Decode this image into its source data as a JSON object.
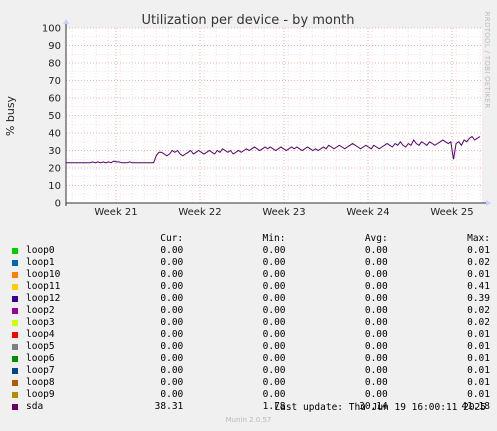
{
  "chart_data": {
    "type": "line",
    "title": "Utilization per device - by month",
    "ylabel": "% busy",
    "ylim": [
      0,
      100
    ],
    "yticks": [
      0,
      10,
      20,
      30,
      40,
      50,
      60,
      70,
      80,
      90,
      100
    ],
    "xtick_labels": [
      "Week 21",
      "Week 22",
      "Week 23",
      "Week 24",
      "Week 25"
    ],
    "grid": true,
    "series": [
      {
        "name": "sda",
        "color": "#550066",
        "values": [
          23,
          23,
          23,
          23,
          23,
          23,
          23,
          23,
          23,
          23,
          23.5,
          23,
          23.5,
          23,
          23.5,
          23,
          23.5,
          23,
          24,
          23.5,
          23.5,
          23,
          23,
          23,
          23.5,
          23,
          23,
          23,
          23,
          23,
          23,
          23,
          23,
          23,
          27,
          29,
          29,
          28,
          27,
          28,
          30,
          29,
          30,
          28,
          27,
          28,
          29,
          30,
          28,
          29,
          30,
          29,
          28,
          29,
          30,
          29,
          28,
          30,
          29,
          31,
          30,
          29,
          30,
          28,
          29,
          30,
          29,
          30,
          31,
          30,
          31,
          32,
          31,
          30,
          31,
          32,
          31,
          32,
          31,
          30,
          31,
          32,
          31,
          30,
          31,
          32,
          31,
          32,
          31,
          30,
          31,
          32,
          31,
          30,
          31,
          30,
          31,
          32,
          31,
          33,
          32,
          31,
          32,
          33,
          32,
          31,
          32,
          33,
          34,
          33,
          32,
          31,
          32,
          33,
          32,
          31,
          33,
          32,
          31,
          32,
          33,
          34,
          33,
          32,
          34,
          33,
          35,
          33,
          32,
          34,
          33,
          36,
          34,
          33,
          35,
          34,
          33,
          35,
          34,
          33,
          34,
          35,
          36,
          35,
          34,
          35,
          25,
          34,
          35,
          33,
          36,
          35,
          37,
          38,
          36,
          37,
          38
        ]
      }
    ]
  },
  "side_label": "RRDTOOL / TOBI OETIKER",
  "legend": {
    "headers": {
      "cur": "Cur:",
      "min": "Min:",
      "avg": "Avg:",
      "max": "Max:"
    },
    "rows": [
      {
        "name": "loop0",
        "color": "#00cc00",
        "cur": "0.00",
        "min": "0.00",
        "avg": "0.00",
        "max": "0.01"
      },
      {
        "name": "loop1",
        "color": "#0066b3",
        "cur": "0.00",
        "min": "0.00",
        "avg": "0.00",
        "max": "0.02"
      },
      {
        "name": "loop10",
        "color": "#ff8000",
        "cur": "0.00",
        "min": "0.00",
        "avg": "0.00",
        "max": "0.01"
      },
      {
        "name": "loop11",
        "color": "#ffcc00",
        "cur": "0.00",
        "min": "0.00",
        "avg": "0.00",
        "max": "0.41"
      },
      {
        "name": "loop12",
        "color": "#330099",
        "cur": "0.00",
        "min": "0.00",
        "avg": "0.00",
        "max": "0.39"
      },
      {
        "name": "loop2",
        "color": "#990099",
        "cur": "0.00",
        "min": "0.00",
        "avg": "0.00",
        "max": "0.02"
      },
      {
        "name": "loop3",
        "color": "#ccff00",
        "cur": "0.00",
        "min": "0.00",
        "avg": "0.00",
        "max": "0.02"
      },
      {
        "name": "loop4",
        "color": "#ff0000",
        "cur": "0.00",
        "min": "0.00",
        "avg": "0.00",
        "max": "0.01"
      },
      {
        "name": "loop5",
        "color": "#808080",
        "cur": "0.00",
        "min": "0.00",
        "avg": "0.00",
        "max": "0.01"
      },
      {
        "name": "loop6",
        "color": "#008f00",
        "cur": "0.00",
        "min": "0.00",
        "avg": "0.00",
        "max": "0.01"
      },
      {
        "name": "loop7",
        "color": "#00487d",
        "cur": "0.00",
        "min": "0.00",
        "avg": "0.00",
        "max": "0.01"
      },
      {
        "name": "loop8",
        "color": "#b35a00",
        "cur": "0.00",
        "min": "0.00",
        "avg": "0.00",
        "max": "0.01"
      },
      {
        "name": "loop9",
        "color": "#b38f00",
        "cur": "0.00",
        "min": "0.00",
        "avg": "0.00",
        "max": "0.01"
      },
      {
        "name": "sda",
        "color": "#6b006b",
        "cur": "38.31",
        "min": "1.78",
        "avg": "30.14",
        "max": "41.18"
      }
    ]
  },
  "footer": {
    "last_update": "Last update: Thu Jun 19 16:00:11 2025",
    "munin": "Munin 2.0.57"
  }
}
